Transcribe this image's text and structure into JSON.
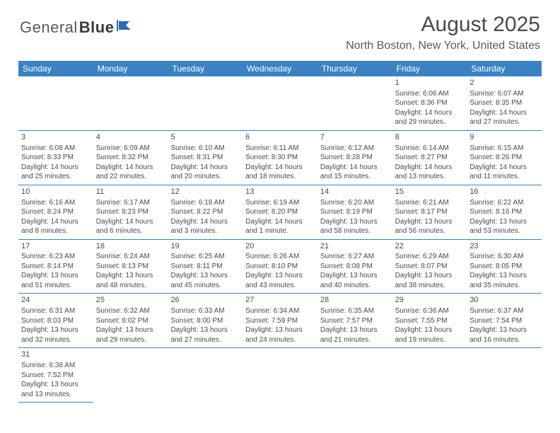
{
  "logo": {
    "part1": "General",
    "part2": "Blue"
  },
  "title": "August 2025",
  "location": "North Boston, New York, United States",
  "colors": {
    "header_bg": "#3b82c4",
    "header_text": "#ffffff",
    "body_text": "#4a4a4a",
    "border": "#3b82c4",
    "background": "#ffffff"
  },
  "weekdays": [
    "Sunday",
    "Monday",
    "Tuesday",
    "Wednesday",
    "Thursday",
    "Friday",
    "Saturday"
  ],
  "weeks": [
    [
      null,
      null,
      null,
      null,
      null,
      {
        "d": "1",
        "sr": "Sunrise: 6:06 AM",
        "ss": "Sunset: 8:36 PM",
        "dl1": "Daylight: 14 hours",
        "dl2": "and 29 minutes."
      },
      {
        "d": "2",
        "sr": "Sunrise: 6:07 AM",
        "ss": "Sunset: 8:35 PM",
        "dl1": "Daylight: 14 hours",
        "dl2": "and 27 minutes."
      }
    ],
    [
      {
        "d": "3",
        "sr": "Sunrise: 6:08 AM",
        "ss": "Sunset: 8:33 PM",
        "dl1": "Daylight: 14 hours",
        "dl2": "and 25 minutes."
      },
      {
        "d": "4",
        "sr": "Sunrise: 6:09 AM",
        "ss": "Sunset: 8:32 PM",
        "dl1": "Daylight: 14 hours",
        "dl2": "and 22 minutes."
      },
      {
        "d": "5",
        "sr": "Sunrise: 6:10 AM",
        "ss": "Sunset: 8:31 PM",
        "dl1": "Daylight: 14 hours",
        "dl2": "and 20 minutes."
      },
      {
        "d": "6",
        "sr": "Sunrise: 6:11 AM",
        "ss": "Sunset: 8:30 PM",
        "dl1": "Daylight: 14 hours",
        "dl2": "and 18 minutes."
      },
      {
        "d": "7",
        "sr": "Sunrise: 6:12 AM",
        "ss": "Sunset: 8:28 PM",
        "dl1": "Daylight: 14 hours",
        "dl2": "and 15 minutes."
      },
      {
        "d": "8",
        "sr": "Sunrise: 6:14 AM",
        "ss": "Sunset: 8:27 PM",
        "dl1": "Daylight: 14 hours",
        "dl2": "and 13 minutes."
      },
      {
        "d": "9",
        "sr": "Sunrise: 6:15 AM",
        "ss": "Sunset: 8:26 PM",
        "dl1": "Daylight: 14 hours",
        "dl2": "and 11 minutes."
      }
    ],
    [
      {
        "d": "10",
        "sr": "Sunrise: 6:16 AM",
        "ss": "Sunset: 8:24 PM",
        "dl1": "Daylight: 14 hours",
        "dl2": "and 8 minutes."
      },
      {
        "d": "11",
        "sr": "Sunrise: 6:17 AM",
        "ss": "Sunset: 8:23 PM",
        "dl1": "Daylight: 14 hours",
        "dl2": "and 6 minutes."
      },
      {
        "d": "12",
        "sr": "Sunrise: 6:18 AM",
        "ss": "Sunset: 8:22 PM",
        "dl1": "Daylight: 14 hours",
        "dl2": "and 3 minutes."
      },
      {
        "d": "13",
        "sr": "Sunrise: 6:19 AM",
        "ss": "Sunset: 8:20 PM",
        "dl1": "Daylight: 14 hours",
        "dl2": "and 1 minute."
      },
      {
        "d": "14",
        "sr": "Sunrise: 6:20 AM",
        "ss": "Sunset: 8:19 PM",
        "dl1": "Daylight: 13 hours",
        "dl2": "and 58 minutes."
      },
      {
        "d": "15",
        "sr": "Sunrise: 6:21 AM",
        "ss": "Sunset: 8:17 PM",
        "dl1": "Daylight: 13 hours",
        "dl2": "and 56 minutes."
      },
      {
        "d": "16",
        "sr": "Sunrise: 6:22 AM",
        "ss": "Sunset: 8:16 PM",
        "dl1": "Daylight: 13 hours",
        "dl2": "and 53 minutes."
      }
    ],
    [
      {
        "d": "17",
        "sr": "Sunrise: 6:23 AM",
        "ss": "Sunset: 8:14 PM",
        "dl1": "Daylight: 13 hours",
        "dl2": "and 51 minutes."
      },
      {
        "d": "18",
        "sr": "Sunrise: 6:24 AM",
        "ss": "Sunset: 8:13 PM",
        "dl1": "Daylight: 13 hours",
        "dl2": "and 48 minutes."
      },
      {
        "d": "19",
        "sr": "Sunrise: 6:25 AM",
        "ss": "Sunset: 8:11 PM",
        "dl1": "Daylight: 13 hours",
        "dl2": "and 45 minutes."
      },
      {
        "d": "20",
        "sr": "Sunrise: 6:26 AM",
        "ss": "Sunset: 8:10 PM",
        "dl1": "Daylight: 13 hours",
        "dl2": "and 43 minutes."
      },
      {
        "d": "21",
        "sr": "Sunrise: 6:27 AM",
        "ss": "Sunset: 8:08 PM",
        "dl1": "Daylight: 13 hours",
        "dl2": "and 40 minutes."
      },
      {
        "d": "22",
        "sr": "Sunrise: 6:29 AM",
        "ss": "Sunset: 8:07 PM",
        "dl1": "Daylight: 13 hours",
        "dl2": "and 38 minutes."
      },
      {
        "d": "23",
        "sr": "Sunrise: 6:30 AM",
        "ss": "Sunset: 8:05 PM",
        "dl1": "Daylight: 13 hours",
        "dl2": "and 35 minutes."
      }
    ],
    [
      {
        "d": "24",
        "sr": "Sunrise: 6:31 AM",
        "ss": "Sunset: 8:03 PM",
        "dl1": "Daylight: 13 hours",
        "dl2": "and 32 minutes."
      },
      {
        "d": "25",
        "sr": "Sunrise: 6:32 AM",
        "ss": "Sunset: 8:02 PM",
        "dl1": "Daylight: 13 hours",
        "dl2": "and 29 minutes."
      },
      {
        "d": "26",
        "sr": "Sunrise: 6:33 AM",
        "ss": "Sunset: 8:00 PM",
        "dl1": "Daylight: 13 hours",
        "dl2": "and 27 minutes."
      },
      {
        "d": "27",
        "sr": "Sunrise: 6:34 AM",
        "ss": "Sunset: 7:59 PM",
        "dl1": "Daylight: 13 hours",
        "dl2": "and 24 minutes."
      },
      {
        "d": "28",
        "sr": "Sunrise: 6:35 AM",
        "ss": "Sunset: 7:57 PM",
        "dl1": "Daylight: 13 hours",
        "dl2": "and 21 minutes."
      },
      {
        "d": "29",
        "sr": "Sunrise: 6:36 AM",
        "ss": "Sunset: 7:55 PM",
        "dl1": "Daylight: 13 hours",
        "dl2": "and 19 minutes."
      },
      {
        "d": "30",
        "sr": "Sunrise: 6:37 AM",
        "ss": "Sunset: 7:54 PM",
        "dl1": "Daylight: 13 hours",
        "dl2": "and 16 minutes."
      }
    ],
    [
      {
        "d": "31",
        "sr": "Sunrise: 6:38 AM",
        "ss": "Sunset: 7:52 PM",
        "dl1": "Daylight: 13 hours",
        "dl2": "and 13 minutes."
      },
      null,
      null,
      null,
      null,
      null,
      null
    ]
  ]
}
